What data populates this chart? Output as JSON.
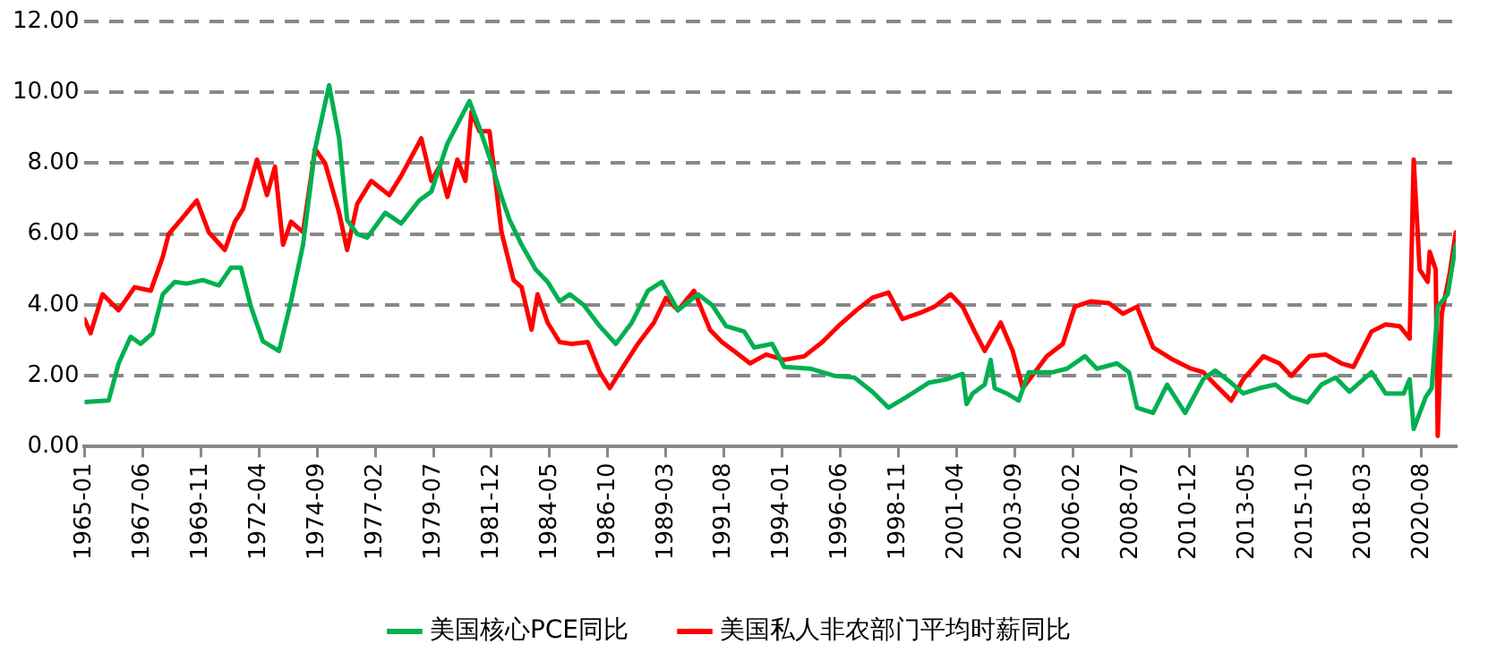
{
  "chart_data": {
    "type": "line",
    "xlim": [
      "1965-01",
      "2022-01"
    ],
    "xticks": [
      "1965-01",
      "1967-06",
      "1969-11",
      "1972-04",
      "1974-09",
      "1977-02",
      "1979-07",
      "1981-12",
      "1984-05",
      "1986-10",
      "1989-03",
      "1991-08",
      "1994-01",
      "1996-06",
      "1998-11",
      "2001-04",
      "2003-09",
      "2006-02",
      "2008-07",
      "2010-12",
      "2013-05",
      "2015-10",
      "2018-03",
      "2020-08"
    ],
    "ylim": [
      0,
      12
    ],
    "yticks": [
      {
        "value": 0,
        "label": "0.00"
      },
      {
        "value": 2,
        "label": "2.00"
      },
      {
        "value": 4,
        "label": "4.00"
      },
      {
        "value": 6,
        "label": "6.00"
      },
      {
        "value": 8,
        "label": "8.00"
      },
      {
        "value": 10,
        "label": "10.00"
      },
      {
        "value": 12,
        "label": "12.00"
      }
    ],
    "grid": "y",
    "legend": "bottom",
    "marker": "none",
    "line_style": "solid",
    "series": [
      {
        "name": "美国核心PCE同比",
        "color": "#00b050",
        "x": [
          "1965-01",
          "1966-01",
          "1966-06",
          "1966-12",
          "1967-05",
          "1967-11",
          "1968-04",
          "1968-10",
          "1969-04",
          "1969-12",
          "1970-08",
          "1971-02",
          "1971-07",
          "1971-12",
          "1972-06",
          "1973-02",
          "1973-08",
          "1974-02",
          "1974-08",
          "1975-03",
          "1975-08",
          "1975-12",
          "1976-05",
          "1976-10",
          "1977-07",
          "1978-03",
          "1978-12",
          "1979-06",
          "1980-02",
          "1980-07",
          "1981-01",
          "1981-06",
          "1981-12",
          "1982-05",
          "1982-09",
          "1983-03",
          "1983-10",
          "1984-04",
          "1984-10",
          "1985-03",
          "1985-10",
          "1986-06",
          "1987-02",
          "1987-10",
          "1988-06",
          "1989-01",
          "1989-09",
          "1990-07",
          "1991-02",
          "1991-09",
          "1992-06",
          "1992-11",
          "1993-08",
          "1994-02",
          "1995-03",
          "1996-03",
          "1997-01",
          "1997-10",
          "1998-06",
          "1999-03",
          "2000-02",
          "2000-11",
          "2001-07",
          "2001-09",
          "2001-12",
          "2002-06",
          "2002-09",
          "2002-11",
          "2003-05",
          "2003-11",
          "2004-04",
          "2005-04",
          "2005-11",
          "2006-08",
          "2007-02",
          "2007-12",
          "2008-06",
          "2008-10",
          "2009-06",
          "2010-01",
          "2010-10",
          "2011-07",
          "2012-01",
          "2012-09",
          "2013-03",
          "2013-11",
          "2014-07",
          "2015-03",
          "2015-11",
          "2016-06",
          "2017-01",
          "2017-08",
          "2018-07",
          "2019-02",
          "2019-11",
          "2020-02",
          "2020-04",
          "2020-10",
          "2021-01",
          "2021-04",
          "2021-09",
          "2022-01"
        ],
        "values": [
          1.26,
          1.3,
          2.35,
          3.1,
          2.9,
          3.2,
          4.3,
          4.65,
          4.6,
          4.7,
          4.55,
          5.05,
          5.05,
          3.95,
          2.97,
          2.7,
          4.1,
          5.7,
          8.4,
          10.2,
          8.7,
          6.4,
          6.0,
          5.9,
          6.6,
          6.3,
          6.95,
          7.2,
          8.55,
          9.1,
          9.75,
          9.0,
          8.0,
          7.05,
          6.4,
          5.7,
          5.0,
          4.65,
          4.1,
          4.3,
          4.0,
          3.4,
          2.9,
          3.5,
          4.4,
          4.65,
          3.85,
          4.3,
          4.0,
          3.4,
          3.25,
          2.8,
          2.9,
          2.25,
          2.2,
          2.0,
          1.95,
          1.55,
          1.1,
          1.4,
          1.8,
          1.9,
          2.05,
          1.2,
          1.5,
          1.75,
          2.45,
          1.65,
          1.5,
          1.3,
          2.1,
          2.1,
          2.2,
          2.55,
          2.2,
          2.35,
          2.1,
          1.1,
          0.95,
          1.75,
          0.95,
          1.9,
          2.15,
          1.8,
          1.5,
          1.65,
          1.75,
          1.4,
          1.25,
          1.75,
          1.95,
          1.55,
          2.1,
          1.5,
          1.5,
          1.9,
          0.5,
          1.4,
          1.65,
          3.95,
          4.3,
          5.7
        ]
      },
      {
        "name": "美国私人非农部门平均时薪同比",
        "color": "#ff0000",
        "x": [
          "1965-01",
          "1965-04",
          "1965-10",
          "1966-06",
          "1967-02",
          "1967-10",
          "1968-04",
          "1968-07",
          "1969-01",
          "1969-09",
          "1970-03",
          "1970-11",
          "1971-04",
          "1971-08",
          "1972-03",
          "1972-08",
          "1972-12",
          "1973-04",
          "1973-08",
          "1974-02",
          "1974-08",
          "1975-01",
          "1975-08",
          "1975-12",
          "1976-05",
          "1976-12",
          "1977-09",
          "1978-03",
          "1979-01",
          "1979-06",
          "1979-10",
          "1980-02",
          "1980-07",
          "1980-11",
          "1981-02",
          "1981-06",
          "1981-11",
          "1982-05",
          "1982-11",
          "1983-03",
          "1983-08",
          "1983-11",
          "1984-04",
          "1984-10",
          "1985-04",
          "1985-12",
          "1986-06",
          "1986-11",
          "1987-05",
          "1988-01",
          "1988-09",
          "1989-03",
          "1989-09",
          "1990-05",
          "1991-01",
          "1991-07",
          "1992-01",
          "1992-09",
          "1993-05",
          "1994-02",
          "1994-12",
          "1995-09",
          "1996-05",
          "1997-02",
          "1997-10",
          "1998-06",
          "1999-01",
          "1999-11",
          "2000-05",
          "2001-01",
          "2001-07",
          "2002-01",
          "2002-06",
          "2003-02",
          "2003-08",
          "2004-01",
          "2004-07",
          "2005-01",
          "2005-09",
          "2006-03",
          "2006-11",
          "2007-08",
          "2008-03",
          "2008-10",
          "2009-06",
          "2010-04",
          "2011-01",
          "2011-07",
          "2012-01",
          "2012-09",
          "2013-03",
          "2014-01",
          "2014-09",
          "2015-03",
          "2015-12",
          "2016-08",
          "2017-04",
          "2017-10",
          "2018-07",
          "2019-02",
          "2019-09",
          "2020-02",
          "2020-04",
          "2020-07",
          "2020-11",
          "2020-12",
          "2021-03",
          "2021-04",
          "2021-06",
          "2021-10",
          "2022-01"
        ],
        "values": [
          3.6,
          3.2,
          4.3,
          3.85,
          4.5,
          4.4,
          5.35,
          6.0,
          6.4,
          6.95,
          6.05,
          5.55,
          6.35,
          6.7,
          8.1,
          7.1,
          7.9,
          5.7,
          6.35,
          6.05,
          8.4,
          8.0,
          6.6,
          5.55,
          6.85,
          7.5,
          7.1,
          7.65,
          8.7,
          7.5,
          7.9,
          7.05,
          8.1,
          7.5,
          9.45,
          8.9,
          8.9,
          6.05,
          4.7,
          4.5,
          3.3,
          4.3,
          3.5,
          2.95,
          2.9,
          2.95,
          2.1,
          1.65,
          2.2,
          2.9,
          3.5,
          4.2,
          3.85,
          4.4,
          3.3,
          2.95,
          2.7,
          2.35,
          2.6,
          2.45,
          2.55,
          2.95,
          3.4,
          3.85,
          4.2,
          4.35,
          3.6,
          3.8,
          3.95,
          4.3,
          3.95,
          3.25,
          2.7,
          3.5,
          2.7,
          1.65,
          2.1,
          2.55,
          2.9,
          3.95,
          4.1,
          4.05,
          3.75,
          3.95,
          2.8,
          2.45,
          2.2,
          2.1,
          1.75,
          1.3,
          1.9,
          2.55,
          2.35,
          2.0,
          2.55,
          2.6,
          2.35,
          2.25,
          3.25,
          3.45,
          3.4,
          3.05,
          8.1,
          5.0,
          4.65,
          5.5,
          5.0,
          0.3,
          3.75,
          4.9,
          6.05
        ]
      }
    ]
  }
}
